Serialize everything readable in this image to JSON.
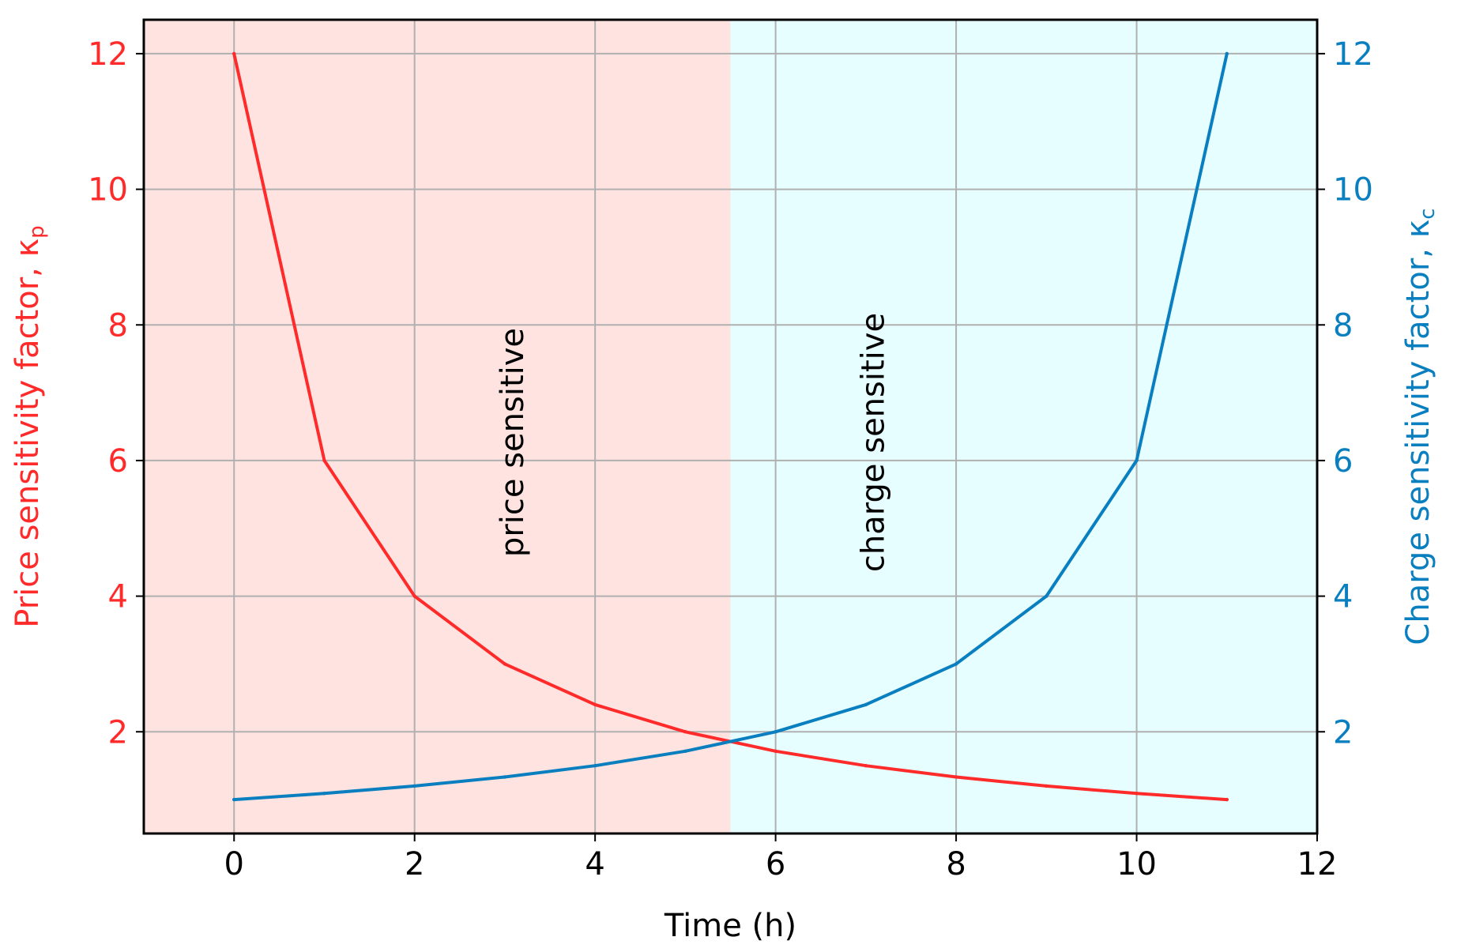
{
  "chart_data": {
    "type": "line",
    "xlabel": "Time (h)",
    "ylabel_left": "Price sensitivity factor, κ",
    "ylabel_left_subscript": "p",
    "ylabel_right": "Charge sensitivity factor, κ",
    "ylabel_right_subscript": "c",
    "xlim": [
      -1,
      12
    ],
    "ylim": [
      0.5,
      12.5
    ],
    "xticks": [
      0,
      2,
      4,
      6,
      8,
      10,
      12
    ],
    "yticks": [
      2,
      4,
      6,
      8,
      10,
      12
    ],
    "grid": true,
    "regions": [
      {
        "x_start": -1,
        "x_end": 5.5,
        "color": "#ffe3e0",
        "label": "price sensitive",
        "label_x": 3.2
      },
      {
        "x_start": 5.5,
        "x_end": 12,
        "color": "#e6feff",
        "label": "charge sensitive",
        "label_x": 7.2
      }
    ],
    "x": [
      0,
      1,
      2,
      3,
      4,
      5,
      6,
      7,
      8,
      9,
      10,
      11
    ],
    "series": [
      {
        "axis": "left",
        "color": "#ff2a2a",
        "values": [
          12,
          6,
          4,
          3,
          2.4,
          2,
          1.714,
          1.5,
          1.333,
          1.2,
          1.091,
          1
        ]
      },
      {
        "axis": "right",
        "color": "#0a7fbf",
        "values": [
          1,
          1.091,
          1.2,
          1.333,
          1.5,
          1.714,
          2,
          2.4,
          3,
          4,
          6,
          12
        ]
      }
    ]
  }
}
